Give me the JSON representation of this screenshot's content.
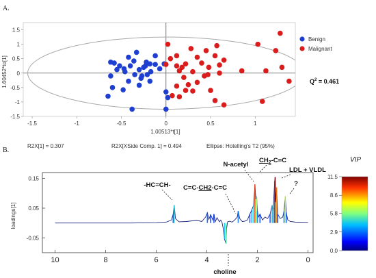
{
  "panel_a": {
    "label": "A.",
    "xlabel": "1.00513*t[1]",
    "ylabel": "1.60452*to[1]",
    "q2": {
      "main": "Q",
      "sup": "2",
      "rest": " = 0.461"
    },
    "footer": {
      "r2x": "R2X[1] = 0.307",
      "r2x_side": "R2X[XSide Comp. 1] = 0.494",
      "ellipse": "Ellipse: Hotelling’s T2 (95%)"
    }
  },
  "panel_b": {
    "label": "B.",
    "ylabel": "loadings[1]",
    "xlabel": "choline",
    "vip": {
      "title": "VIP"
    },
    "annotations": {
      "hc": "-HC=CH-",
      "cc_a": "C=C-",
      "cc_b": "CH2",
      "cc_c": "-C=C",
      "nacetyl": "N-acetyl",
      "ch2_a": "CH",
      "ch2_sub": "2",
      "ch2_b": "-C=C",
      "ldl": "LDL + VLDL",
      "q": "?"
    }
  },
  "colors": {
    "benign": "#1f3fd1",
    "malignant": "#d91c1c",
    "ellipse": "#a8a8a8",
    "loading_line": "#1a237e",
    "plot_bg": "#ffffff"
  },
  "chart_data": [
    {
      "type": "scatter",
      "xlabel": "1.00513*t[1]",
      "ylabel": "1.60452*to[1]",
      "xlim": [
        -1.6,
        1.45
      ],
      "ylim": [
        -1.5,
        1.75
      ],
      "xticks": [
        -1.5,
        -1,
        -0.5,
        0,
        0.5,
        1
      ],
      "yticks": [
        1.5,
        1,
        0.5,
        0,
        -0.5,
        -1,
        -1.5
      ],
      "legend_position": "right",
      "annotation": "Q² = 0.461",
      "series": [
        {
          "name": "Benign",
          "color": "#1f3fd1",
          "points": [
            [
              -0.62,
              0.38
            ],
            [
              -0.58,
              0.35
            ],
            [
              -0.52,
              0.25
            ],
            [
              -0.55,
              0.12
            ],
            [
              -0.47,
              0.15
            ],
            [
              -0.42,
              0.55
            ],
            [
              -0.36,
              0.42
            ],
            [
              -0.33,
              0.72
            ],
            [
              -0.4,
              0.25
            ],
            [
              -0.46,
              0.05
            ],
            [
              -0.3,
              0.12
            ],
            [
              -0.23,
              0.25
            ],
            [
              -0.17,
              0.05
            ],
            [
              -0.12,
              0.3
            ],
            [
              -0.02,
              0.32
            ],
            [
              -0.07,
              0.15
            ],
            [
              -0.35,
              -0.05
            ],
            [
              -0.27,
              -0.1
            ],
            [
              -0.21,
              -0.05
            ],
            [
              -0.25,
              0.2
            ],
            [
              -0.18,
              0.32
            ],
            [
              -0.42,
              -0.28
            ],
            [
              -0.3,
              -0.42
            ],
            [
              -0.18,
              -0.28
            ],
            [
              -0.48,
              -0.58
            ],
            [
              -0.6,
              -0.5
            ],
            [
              -0.65,
              -0.8
            ],
            [
              -0.28,
              -0.18
            ],
            [
              -0.38,
              -1.25
            ],
            [
              -0.12,
              0.6
            ],
            [
              -0.22,
              0.38
            ],
            [
              -0.62,
              -0.1
            ],
            [
              0.0,
              -0.65
            ],
            [
              0.02,
              -0.85
            ],
            [
              0.0,
              -1.25
            ]
          ]
        },
        {
          "name": "Malignant",
          "color": "#d91c1c",
          "points": [
            [
              0.02,
              1.0
            ],
            [
              0.05,
              0.5
            ],
            [
              0.12,
              0.25
            ],
            [
              0.15,
              0.08
            ],
            [
              0.18,
              0.2
            ],
            [
              0.22,
              0.32
            ],
            [
              0.28,
              0.85
            ],
            [
              0.3,
              0.05
            ],
            [
              0.35,
              0.55
            ],
            [
              0.4,
              0.35
            ],
            [
              0.48,
              0.2
            ],
            [
              0.55,
              0.6
            ],
            [
              0.6,
              0.28
            ],
            [
              0.65,
              0.45
            ],
            [
              0.57,
              0.95
            ],
            [
              0.45,
              0.78
            ],
            [
              0.2,
              -0.15
            ],
            [
              0.25,
              -0.4
            ],
            [
              0.35,
              -0.32
            ],
            [
              0.47,
              -0.05
            ],
            [
              0.12,
              -0.45
            ],
            [
              0.07,
              -0.78
            ],
            [
              0.15,
              -0.82
            ],
            [
              0.3,
              -0.62
            ],
            [
              0.5,
              -0.6
            ],
            [
              0.55,
              -0.95
            ],
            [
              0.85,
              0.08
            ],
            [
              1.12,
              0.08
            ],
            [
              1.3,
              0.2
            ],
            [
              1.38,
              -0.28
            ],
            [
              1.23,
              0.78
            ],
            [
              1.28,
              1.38
            ],
            [
              1.03,
              1.0
            ],
            [
              1.08,
              -0.98
            ],
            [
              0.65,
              -1.1
            ],
            [
              0.0,
              0.3
            ],
            [
              0.12,
              0.6
            ],
            [
              0.6,
              0.0
            ],
            [
              0.43,
              -0.1
            ],
            [
              0.22,
              -0.6
            ]
          ]
        }
      ],
      "ellipse_semi_axes": {
        "x": 1.55,
        "y": 1.25
      }
    },
    {
      "type": "line",
      "ylabel": "loadings[1]",
      "xlim": [
        10.5,
        -0.2
      ],
      "ylim": [
        -0.1,
        0.17
      ],
      "xticks": [
        10,
        8,
        6,
        4,
        2,
        0
      ],
      "yticks": [
        0.15,
        0.05,
        -0.05
      ],
      "colorbar": {
        "title": "VIP",
        "range": [
          0.0,
          11.5
        ],
        "ticks": [
          11.5,
          8.6,
          5.8,
          2.9,
          0.0
        ]
      },
      "series": [
        {
          "name": "loadings",
          "x": [
            10.0,
            9.0,
            8.0,
            7.0,
            6.0,
            5.6,
            5.4,
            5.33,
            5.29,
            5.24,
            5.1,
            4.8,
            4.4,
            4.2,
            4.05,
            3.98,
            3.92,
            3.85,
            3.76,
            3.72,
            3.66,
            3.6,
            3.5,
            3.45,
            3.4,
            3.35,
            3.3,
            3.24,
            3.22,
            3.18,
            3.1,
            3.0,
            2.9,
            2.8,
            2.76,
            2.7,
            2.6,
            2.5,
            2.4,
            2.3,
            2.22,
            2.15,
            2.1,
            2.06,
            2.03,
            2.0,
            1.96,
            1.9,
            1.8,
            1.7,
            1.6,
            1.5,
            1.42,
            1.38,
            1.32,
            1.3,
            1.28,
            1.24,
            1.2,
            1.1,
            1.0,
            0.95,
            0.9,
            0.86,
            0.8,
            0.7,
            0.5,
            0.0
          ],
          "y": [
            0.0,
            0.0,
            0.0,
            0.0,
            0.001,
            0.003,
            0.01,
            0.03,
            0.06,
            0.015,
            0.004,
            0.005,
            0.009,
            0.005,
            0.02,
            0.035,
            0.012,
            0.028,
            0.01,
            0.03,
            0.005,
            0.018,
            0.004,
            0.01,
            0.002,
            -0.02,
            -0.055,
            -0.07,
            -0.02,
            0.004,
            0.006,
            0.003,
            0.01,
            0.02,
            0.04,
            0.015,
            0.005,
            0.006,
            0.01,
            0.03,
            0.045,
            0.06,
            0.13,
            0.08,
            0.09,
            0.04,
            0.02,
            0.03,
            0.01,
            0.02,
            0.015,
            0.03,
            0.06,
            0.04,
            0.14,
            0.155,
            0.07,
            0.12,
            0.03,
            0.015,
            0.02,
            0.04,
            0.09,
            0.035,
            0.01,
            0.005,
            0.003,
            0.002
          ]
        }
      ]
    }
  ]
}
